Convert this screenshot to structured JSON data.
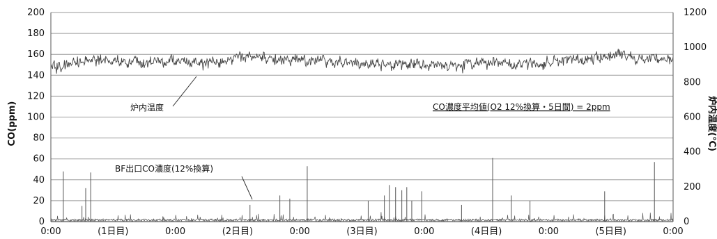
{
  "chart_data": {
    "type": "line",
    "title": "",
    "y_left": {
      "label": "CO(ppm)",
      "range": [
        0,
        200
      ],
      "ticks": [
        "0",
        "20",
        "40",
        "60",
        "80",
        "100",
        "120",
        "140",
        "160",
        "180",
        "200"
      ]
    },
    "y_right": {
      "label": "炉内温度(℃)",
      "range": [
        0,
        1200
      ],
      "ticks": [
        "0",
        "200",
        "400",
        "600",
        "800",
        "1000",
        "1200"
      ]
    },
    "x_axis": {
      "range_days": [
        0,
        5
      ],
      "time_ticks": [
        "0:00",
        "0:00",
        "0:00",
        "0:00",
        "0:00",
        "0:00"
      ],
      "day_labels": [
        "(1日目)",
        "(2日目)",
        "(3日目)",
        "(4日目)",
        "(5日目)"
      ]
    },
    "grid": true,
    "legend": "none",
    "annotations": {
      "temperature_label": "炉内温度",
      "co_label": "BF出口CO濃度(12%換算)",
      "average_note": "CO濃度平均値(O2 12%換算・5日間) = 2ppm"
    },
    "series": [
      {
        "name": "炉内温度",
        "axis": "right",
        "color": "#444444",
        "baseline": 920,
        "variation": 40,
        "x_days": [
          0,
          0.25,
          0.5,
          0.75,
          1.0,
          1.25,
          1.5,
          1.75,
          2.0,
          2.25,
          2.5,
          2.75,
          3.0,
          3.25,
          3.5,
          3.75,
          4.0,
          4.25,
          4.5,
          4.75,
          5.0
        ],
        "values": [
          880,
          915,
          930,
          910,
          920,
          905,
          945,
          930,
          925,
          920,
          910,
          905,
          900,
          895,
          915,
          900,
          910,
          925,
          955,
          935,
          920
        ]
      },
      {
        "name": "BF出口CO濃度(12%換算)",
        "axis": "left",
        "color": "#555555",
        "baseline": 2,
        "peaks": [
          {
            "x_day": 0.1,
            "value": 48
          },
          {
            "x_day": 0.25,
            "value": 15
          },
          {
            "x_day": 0.28,
            "value": 32
          },
          {
            "x_day": 0.32,
            "value": 47
          },
          {
            "x_day": 0.9,
            "value": 5
          },
          {
            "x_day": 1.6,
            "value": 16
          },
          {
            "x_day": 1.84,
            "value": 25
          },
          {
            "x_day": 1.92,
            "value": 22
          },
          {
            "x_day": 2.06,
            "value": 53
          },
          {
            "x_day": 2.55,
            "value": 20
          },
          {
            "x_day": 2.68,
            "value": 25
          },
          {
            "x_day": 2.72,
            "value": 35
          },
          {
            "x_day": 2.77,
            "value": 33
          },
          {
            "x_day": 2.82,
            "value": 30
          },
          {
            "x_day": 2.86,
            "value": 33
          },
          {
            "x_day": 2.9,
            "value": 20
          },
          {
            "x_day": 2.98,
            "value": 29
          },
          {
            "x_day": 3.3,
            "value": 16
          },
          {
            "x_day": 3.55,
            "value": 61
          },
          {
            "x_day": 3.7,
            "value": 25
          },
          {
            "x_day": 3.85,
            "value": 20
          },
          {
            "x_day": 4.45,
            "value": 29
          },
          {
            "x_day": 4.85,
            "value": 57
          }
        ]
      }
    ]
  }
}
